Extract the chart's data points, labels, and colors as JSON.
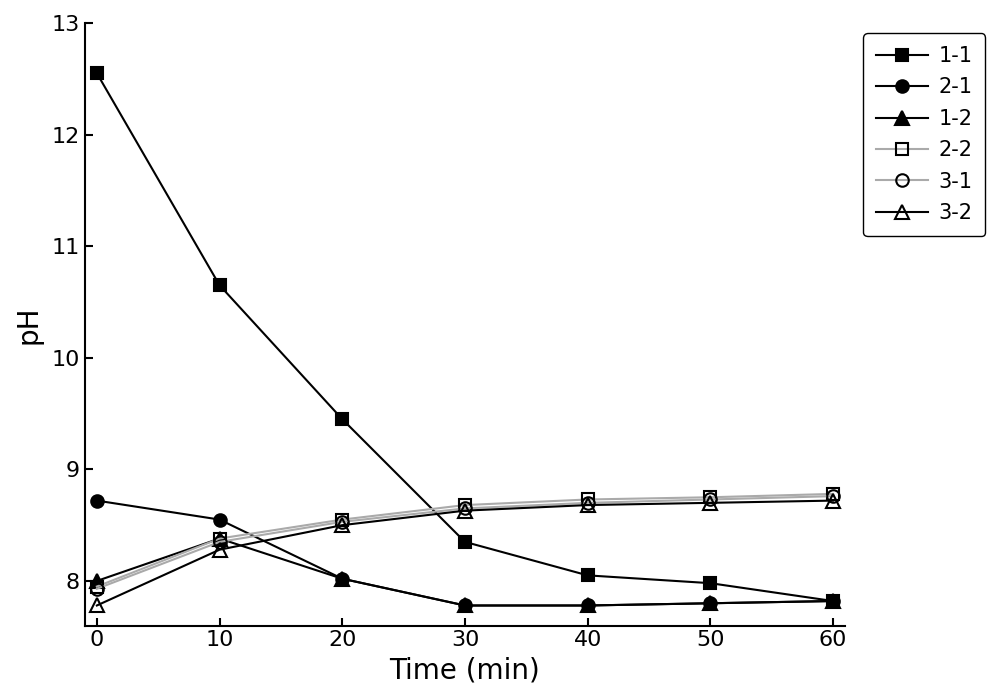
{
  "series": [
    {
      "label": "1-1",
      "x": [
        0,
        10,
        20,
        30,
        40,
        50,
        60
      ],
      "y": [
        12.55,
        10.65,
        9.45,
        8.35,
        8.05,
        7.98,
        7.82
      ],
      "color": "#000000",
      "marker": "s",
      "fillstyle": "full",
      "linestyle": "-",
      "linewidth": 1.5,
      "markersize": 9
    },
    {
      "label": "2-1",
      "x": [
        0,
        10,
        20,
        30,
        40,
        50,
        60
      ],
      "y": [
        8.72,
        8.55,
        8.02,
        7.78,
        7.78,
        7.8,
        7.82
      ],
      "color": "#000000",
      "marker": "o",
      "fillstyle": "full",
      "linestyle": "-",
      "linewidth": 1.5,
      "markersize": 9
    },
    {
      "label": "1-2",
      "x": [
        0,
        10,
        20,
        30,
        40,
        50,
        60
      ],
      "y": [
        8.0,
        8.38,
        8.02,
        7.78,
        7.78,
        7.8,
        7.82
      ],
      "color": "#000000",
      "marker": "^",
      "fillstyle": "full",
      "linestyle": "-",
      "linewidth": 1.5,
      "markersize": 10
    },
    {
      "label": "2-2",
      "x": [
        0,
        10,
        20,
        30,
        40,
        50,
        60
      ],
      "y": [
        7.95,
        8.38,
        8.55,
        8.68,
        8.73,
        8.75,
        8.78
      ],
      "color": "#aaaaaa",
      "marker": "s",
      "fillstyle": "none",
      "linestyle": "-",
      "linewidth": 1.5,
      "markersize": 9
    },
    {
      "label": "3-1",
      "x": [
        0,
        10,
        20,
        30,
        40,
        50,
        60
      ],
      "y": [
        7.93,
        8.35,
        8.53,
        8.65,
        8.7,
        8.73,
        8.76
      ],
      "color": "#aaaaaa",
      "marker": "o",
      "fillstyle": "none",
      "linestyle": "-",
      "linewidth": 1.5,
      "markersize": 9
    },
    {
      "label": "3-2",
      "x": [
        0,
        10,
        20,
        30,
        40,
        50,
        60
      ],
      "y": [
        7.78,
        8.28,
        8.5,
        8.63,
        8.68,
        8.7,
        8.72
      ],
      "color": "#000000",
      "marker": "^",
      "fillstyle": "none",
      "linestyle": "-",
      "linewidth": 1.5,
      "markersize": 10
    }
  ],
  "xlabel": "Time (min)",
  "ylabel": "pH",
  "xlim": [
    -1,
    61
  ],
  "ylim": [
    7.6,
    13.0
  ],
  "yticks": [
    8,
    9,
    10,
    11,
    12,
    13
  ],
  "xticks": [
    0,
    10,
    20,
    30,
    40,
    50,
    60
  ],
  "background_color": "#ffffff",
  "xlabel_fontsize": 20,
  "ylabel_fontsize": 20,
  "tick_fontsize": 16,
  "legend_fontsize": 15
}
